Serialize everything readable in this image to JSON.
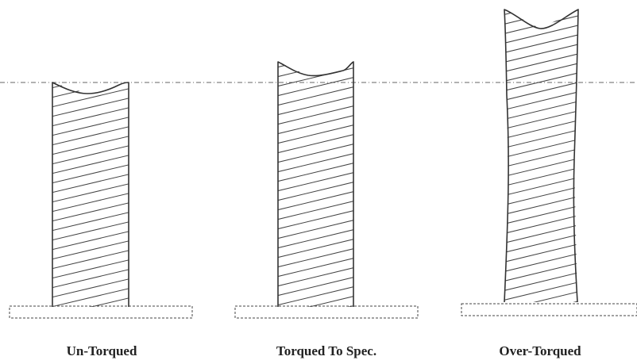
{
  "diagram": {
    "captions": [
      {
        "text": "Un-Torqued"
      },
      {
        "text": "Torqued To Spec."
      },
      {
        "text": "Over-Torqued"
      }
    ],
    "colors": {
      "stroke": "#333333",
      "hatch": "#444444",
      "reference_line": "#666666",
      "background": "#ffffff"
    }
  }
}
